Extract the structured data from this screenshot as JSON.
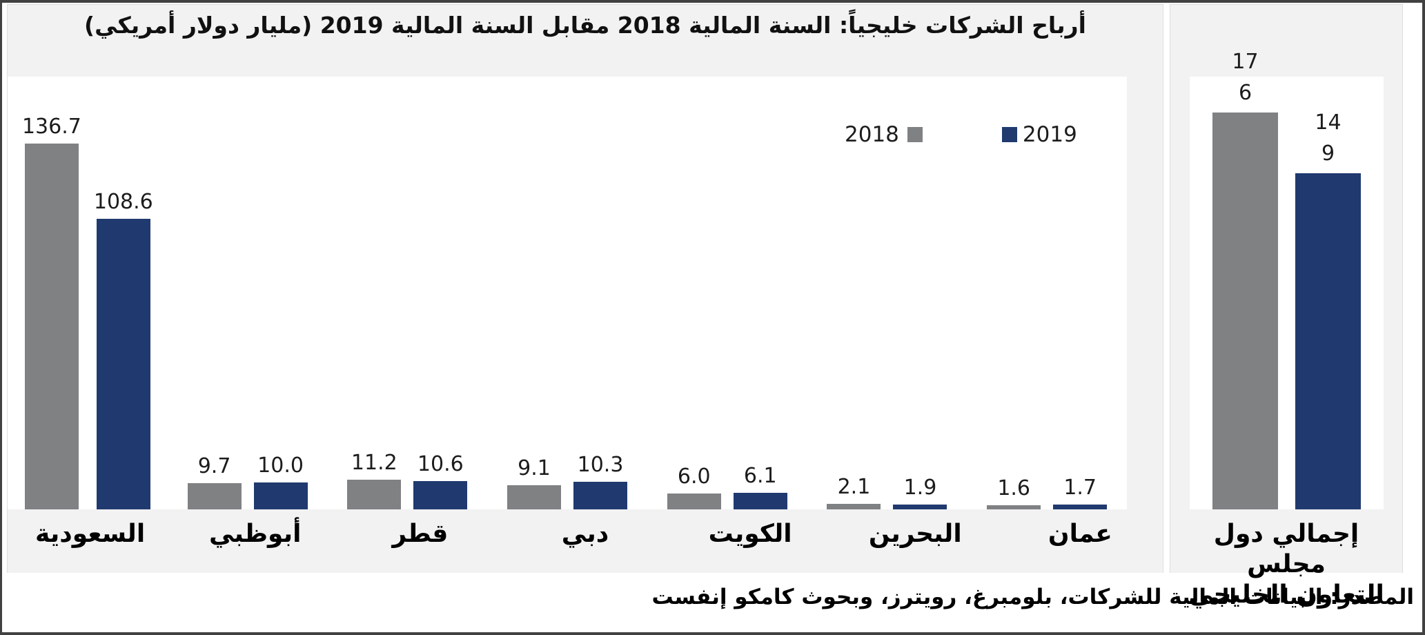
{
  "title": "أرباح الشركات خليجياً: السنة المالية 2018 مقابل السنة المالية 2019 (مليار دولار أمريكي)",
  "legend": {
    "label_2018": "2018",
    "label_2019": "2019"
  },
  "colors": {
    "series_2018_gray": "#7f8183",
    "series_2019_blue": "#203a6f",
    "panel_background": "#f2f2f3",
    "plot_background": "#ffffff",
    "frame": "#414141"
  },
  "source": "المصدر: البيانات المالية للشركات، بلومبرغ، رويترز، وبحوث كامكو إنفست",
  "chart_data": [
    {
      "type": "bar",
      "title": "أرباح الشركات خليجياً: السنة المالية 2018 مقابل السنة المالية 2019 (مليار دولار أمريكي)",
      "categories": [
        "السعودية",
        "أبوظبي",
        "قطر",
        "دبي",
        "الكويت",
        "البحرين",
        "عمان"
      ],
      "series": [
        {
          "name": "2018",
          "color": "#7f8183",
          "values": [
            136.7,
            9.7,
            11.2,
            9.1,
            6.0,
            2.1,
            1.6
          ]
        },
        {
          "name": "2019",
          "color": "#203a6f",
          "values": [
            108.6,
            10.0,
            10.6,
            10.3,
            6.1,
            1.9,
            1.7
          ]
        }
      ],
      "value_labels": [
        [
          "136.7",
          "108.6"
        ],
        [
          "9.7",
          "10.0"
        ],
        [
          "11.2",
          "10.6"
        ],
        [
          "9.1",
          "10.3"
        ],
        [
          "6.0",
          "6.1"
        ],
        [
          "2.1",
          "1.9"
        ],
        [
          "1.6",
          "1.7"
        ]
      ],
      "ylim": [
        0,
        160
      ],
      "grid": false,
      "value_axis_visible": false,
      "legend_position": "inside-plot-upper-area"
    },
    {
      "type": "bar",
      "categories": [
        "إجمالي دول مجلس التعاون الخليجي"
      ],
      "category_label_lines": [
        "إجمالي دول مجلس",
        "التعاون الخليجي"
      ],
      "series": [
        {
          "name": "2018",
          "color": "#7f8183",
          "values": [
            176
          ]
        },
        {
          "name": "2019",
          "color": "#203a6f",
          "values": [
            149
          ]
        }
      ],
      "value_labels_wrapped": [
        [
          "17",
          "6"
        ],
        [
          "14",
          "9"
        ]
      ],
      "ylim": [
        0,
        192
      ],
      "grid": false,
      "value_axis_visible": false
    }
  ]
}
